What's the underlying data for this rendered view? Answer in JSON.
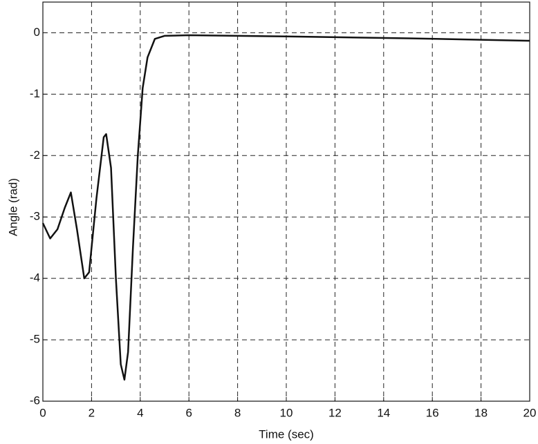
{
  "chart_data": {
    "type": "line",
    "xlabel": "Time (sec)",
    "ylabel": "Angle (rad)",
    "x": [
      0,
      0.3,
      0.6,
      0.9,
      1.15,
      1.4,
      1.7,
      1.9,
      2.2,
      2.5,
      2.6,
      2.8,
      3.0,
      3.2,
      3.35,
      3.5,
      3.7,
      3.9,
      4.1,
      4.3,
      4.6,
      5.0,
      6,
      10,
      15,
      20
    ],
    "values": [
      -3.1,
      -3.35,
      -3.2,
      -2.85,
      -2.6,
      -3.2,
      -4.0,
      -3.9,
      -2.7,
      -1.7,
      -1.65,
      -2.2,
      -4.0,
      -5.4,
      -5.65,
      -5.2,
      -3.5,
      -2.0,
      -0.9,
      -0.4,
      -0.1,
      -0.05,
      -0.04,
      -0.06,
      -0.09,
      -0.13
    ],
    "color": "#111111",
    "xlim": [
      0,
      20
    ],
    "xticks": [
      0,
      2,
      4,
      6,
      8,
      10,
      12,
      14,
      16,
      18,
      20
    ],
    "ylim": [
      -6,
      0.5
    ],
    "yticks": [
      -6,
      -5,
      -4,
      -3,
      -2,
      -1,
      0
    ],
    "grid": true
  }
}
